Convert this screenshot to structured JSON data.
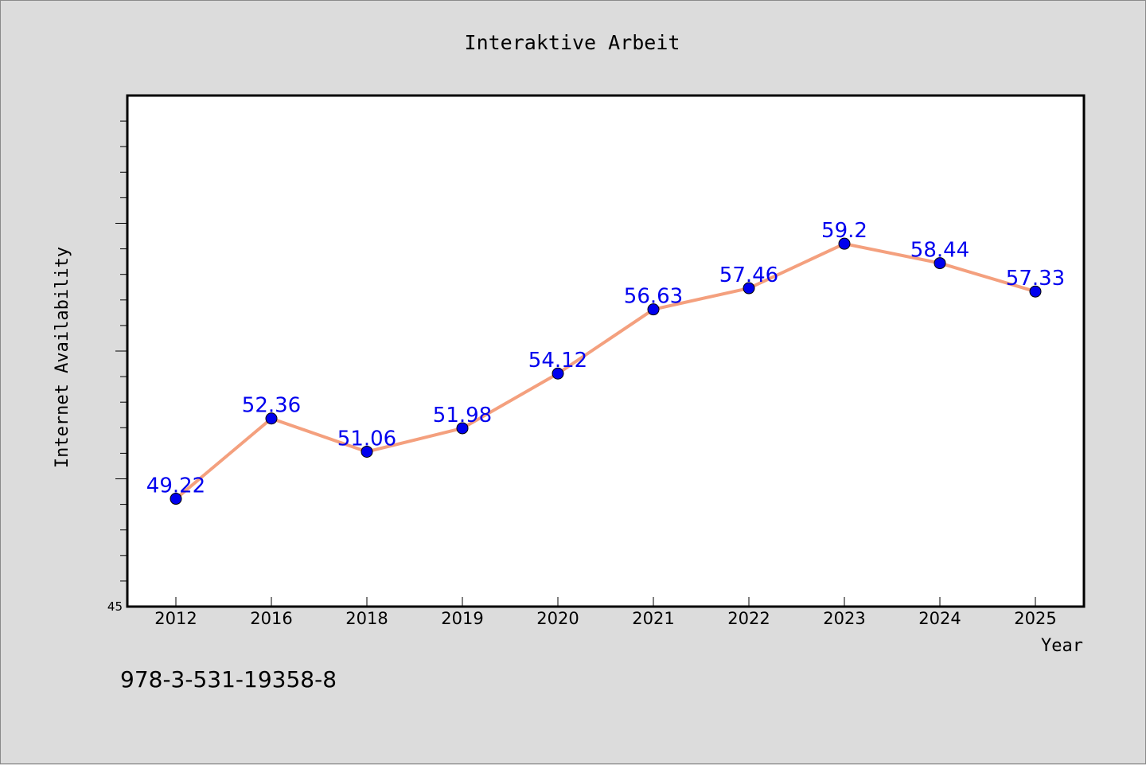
{
  "chart_data": {
    "type": "line",
    "title": "Interaktive Arbeit",
    "xlabel": "Year",
    "ylabel": "Internet Availability",
    "categories": [
      "2012",
      "2016",
      "2018",
      "2019",
      "2020",
      "2021",
      "2022",
      "2023",
      "2024",
      "2025"
    ],
    "series": [
      {
        "values": [
          49.22,
          52.36,
          51.06,
          51.98,
          54.12,
          56.63,
          57.46,
          59.2,
          58.44,
          57.33
        ],
        "labels": [
          "49.22",
          "52.36",
          "51.06",
          "51.98",
          "54.12",
          "56.63",
          "57.46",
          "59.2",
          "58.44",
          "57.33"
        ],
        "line_color": "#f4a07e",
        "marker_color": "#0000ee",
        "label_color": "#0000ee"
      }
    ],
    "ylim": [
      45,
      65
    ],
    "y_tick_labels": [
      "45"
    ],
    "grid": false,
    "legend": "none"
  },
  "footer_text": "978-3-531-19358-8"
}
